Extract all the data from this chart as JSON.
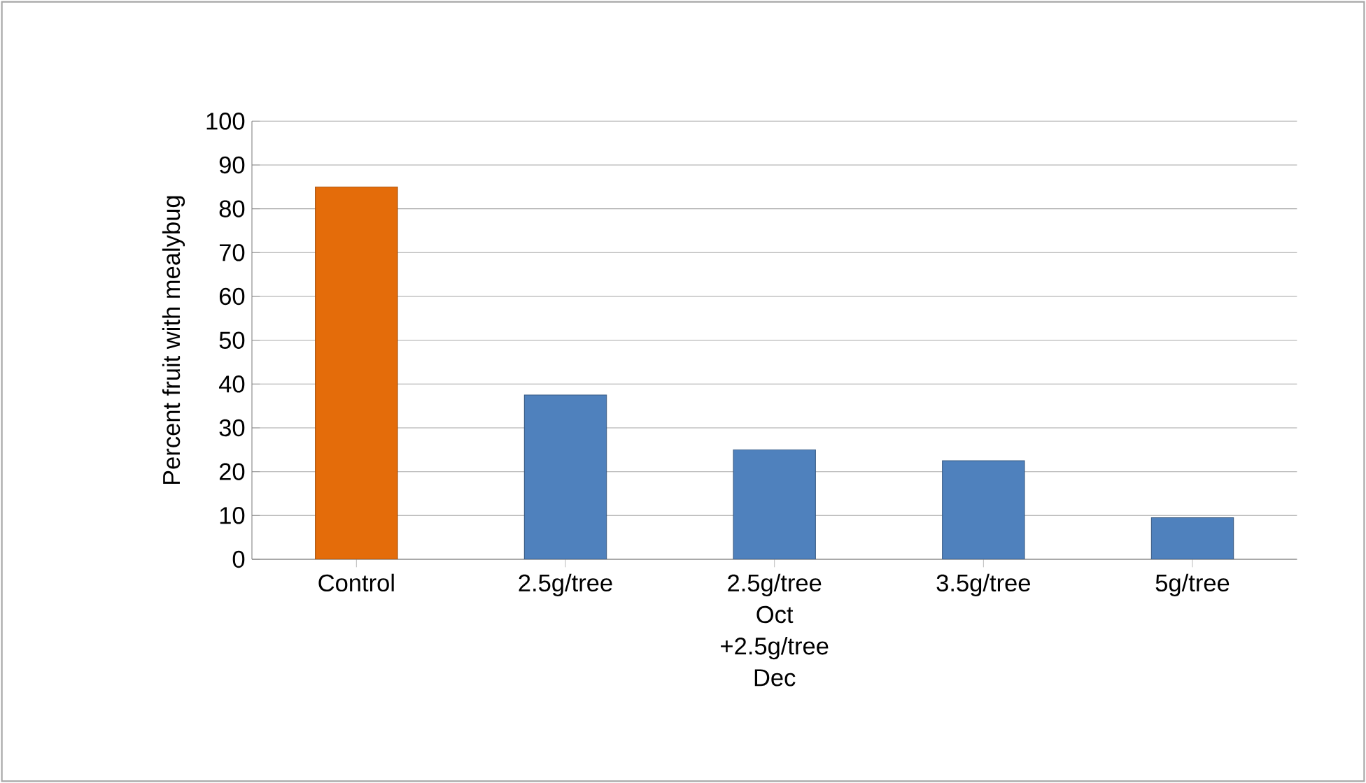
{
  "chart_data": {
    "type": "bar",
    "ylabel": "Percent fruit with mealybug",
    "categories": [
      "Control",
      "2.5g/tree",
      "2.5g/tree Oct +2.5g/tree Dec",
      "3.5g/tree",
      "5g/tree"
    ],
    "values": [
      85,
      37.5,
      25,
      22.5,
      9.5
    ],
    "colors": [
      "#e46c0a",
      "#4f81bd",
      "#4f81bd",
      "#4f81bd",
      "#4f81bd"
    ],
    "ylim": [
      0,
      100
    ],
    "yticks": [
      0,
      10,
      20,
      30,
      40,
      50,
      60,
      70,
      80,
      90,
      100
    ],
    "grid": "y"
  }
}
